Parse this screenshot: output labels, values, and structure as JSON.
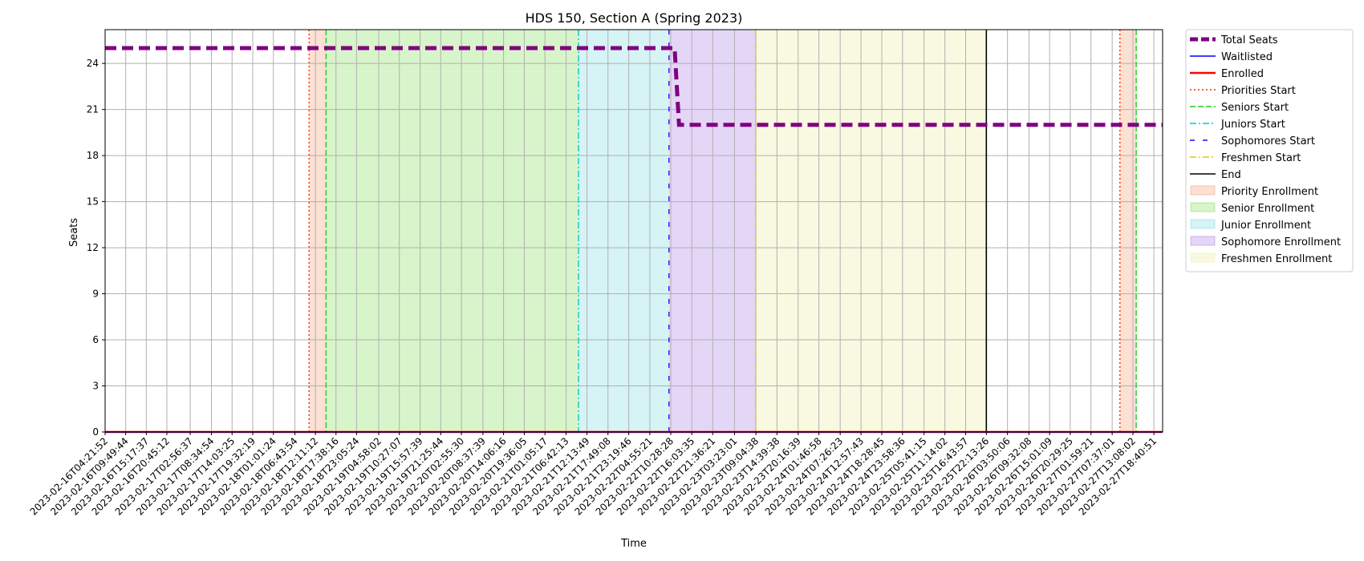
{
  "chart_data": {
    "type": "line",
    "title": "HDS 150, Section A (Spring 2023)",
    "xlabel": "Time",
    "ylabel": "Seats",
    "x_range": [
      "2023-02-16T04:21:52",
      "2023-02-27T21:00:00"
    ],
    "ylim": [
      0,
      26.2
    ],
    "y_ticks": [
      0,
      3,
      6,
      9,
      12,
      15,
      18,
      21,
      24
    ],
    "x_ticks": [
      "2023-02-16T04:21:52",
      "2023-02-16T09:49:44",
      "2023-02-16T15:17:37",
      "2023-02-16T20:45:12",
      "2023-02-17T02:56:37",
      "2023-02-17T08:34:54",
      "2023-02-17T14:03:25",
      "2023-02-17T19:32:19",
      "2023-02-18T01:01:24",
      "2023-02-18T06:43:54",
      "2023-02-18T12:11:12",
      "2023-02-18T17:38:16",
      "2023-02-18T23:05:24",
      "2023-02-19T04:58:02",
      "2023-02-19T10:27:07",
      "2023-02-19T15:57:39",
      "2023-02-19T21:25:44",
      "2023-02-20T02:55:30",
      "2023-02-20T08:37:39",
      "2023-02-20T14:06:16",
      "2023-02-20T19:36:05",
      "2023-02-21T01:05:17",
      "2023-02-21T06:42:13",
      "2023-02-21T12:13:49",
      "2023-02-21T17:49:08",
      "2023-02-21T23:19:46",
      "2023-02-22T04:55:21",
      "2023-02-22T10:28:28",
      "2023-02-22T16:03:35",
      "2023-02-22T21:36:21",
      "2023-02-23T03:23:01",
      "2023-02-23T09:04:38",
      "2023-02-23T14:39:38",
      "2023-02-23T20:16:39",
      "2023-02-24T01:46:58",
      "2023-02-24T07:26:23",
      "2023-02-24T12:57:43",
      "2023-02-24T18:28:45",
      "2023-02-24T23:58:36",
      "2023-02-25T05:41:15",
      "2023-02-25T11:14:02",
      "2023-02-25T16:43:57",
      "2023-02-25T22:13:26",
      "2023-02-26T03:50:06",
      "2023-02-26T09:32:08",
      "2023-02-26T15:01:09",
      "2023-02-26T20:29:25",
      "2023-02-27T01:59:21",
      "2023-02-27T07:37:01",
      "2023-02-27T13:08:02",
      "2023-02-27T18:40:51"
    ],
    "grid": true,
    "legend_position": "outside-right",
    "series": [
      {
        "name": "Total Seats",
        "color": "#800080",
        "style": "dashed-thick",
        "points": [
          [
            "2023-02-16T04:21:52",
            25
          ],
          [
            "2023-02-22T11:30:00",
            25
          ],
          [
            "2023-02-22T12:40:00",
            20
          ],
          [
            "2023-02-27T21:00:00",
            20
          ]
        ]
      },
      {
        "name": "Waitlisted",
        "color": "#0000ff",
        "style": "solid",
        "points": [
          [
            "2023-02-16T04:21:52",
            0
          ],
          [
            "2023-02-27T21:00:00",
            0
          ]
        ]
      },
      {
        "name": "Enrolled",
        "color": "#ff0000",
        "style": "solid-thick",
        "points": [
          [
            "2023-02-16T04:21:52",
            0
          ],
          [
            "2023-02-27T21:00:00",
            0
          ]
        ]
      }
    ],
    "event_lines": [
      {
        "name": "Priorities Start",
        "color": "#ff2a00",
        "style": "dotted",
        "x": [
          "2023-02-18T10:30:00",
          "2023-02-27T09:40:00"
        ]
      },
      {
        "name": "Seniors Start",
        "color": "#22cc22",
        "style": "dashed",
        "x": [
          "2023-02-18T15:00:00",
          "2023-02-27T14:00:00"
        ]
      },
      {
        "name": "Juniors Start",
        "color": "#00cccc",
        "style": "dashdot",
        "x": [
          "2023-02-21T10:00:00"
        ]
      },
      {
        "name": "Sophomores Start",
        "color": "#3300ff",
        "style": "loosedash",
        "x": [
          "2023-02-22T10:00:00"
        ]
      },
      {
        "name": "Freshmen Start",
        "color": "#e6c800",
        "style": "dashdot",
        "x": [
          "2023-02-23T09:00:00"
        ]
      },
      {
        "name": "End",
        "color": "#000000",
        "style": "solid",
        "x": [
          "2023-02-25T22:13:26"
        ]
      }
    ],
    "shaded_regions": [
      {
        "name": "Priority Enrollment",
        "color": "#f4a582",
        "spans": [
          [
            "2023-02-18T10:30:00",
            "2023-02-18T15:00:00"
          ],
          [
            "2023-02-27T09:40:00",
            "2023-02-27T14:00:00"
          ]
        ]
      },
      {
        "name": "Senior Enrollment",
        "color": "#90e06a",
        "spans": [
          [
            "2023-02-18T15:00:00",
            "2023-02-21T10:00:00"
          ]
        ]
      },
      {
        "name": "Junior Enrollment",
        "color": "#8adde6",
        "spans": [
          [
            "2023-02-21T10:00:00",
            "2023-02-22T10:00:00"
          ]
        ]
      },
      {
        "name": "Sophomore Enrollment",
        "color": "#b28ae6",
        "spans": [
          [
            "2023-02-22T10:00:00",
            "2023-02-23T09:00:00"
          ]
        ]
      },
      {
        "name": "Freshmen Enrollment",
        "color": "#eeeea8",
        "spans": [
          [
            "2023-02-23T09:00:00",
            "2023-02-25T22:13:26"
          ]
        ]
      }
    ]
  }
}
